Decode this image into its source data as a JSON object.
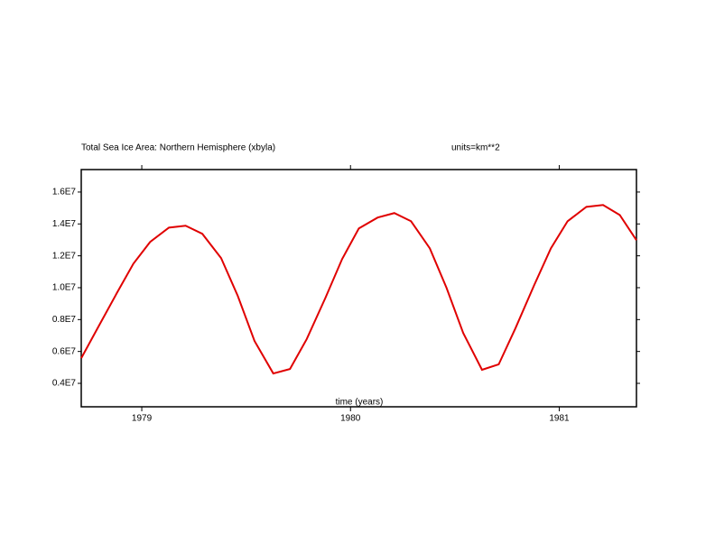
{
  "chart_data": {
    "type": "line",
    "title": "Total Sea Ice Area: Northern Hemisphere (xbyla)",
    "subtitle": "units=km**2",
    "x_label": "time (years)",
    "x": [
      1978.71,
      1978.79,
      1978.88,
      1978.96,
      1979.04,
      1979.13,
      1979.21,
      1979.29,
      1979.38,
      1979.46,
      1979.54,
      1979.63,
      1979.71,
      1979.79,
      1979.88,
      1979.96,
      1980.04,
      1980.13,
      1980.21,
      1980.29,
      1980.38,
      1980.46,
      1980.54,
      1980.63,
      1980.71,
      1980.79,
      1980.88,
      1980.96,
      1981.04,
      1981.13,
      1981.21,
      1981.29,
      1981.37
    ],
    "series": [
      {
        "name": "Total Sea Ice Area",
        "color": "#e00000",
        "values": [
          5580000,
          7500000,
          9650000,
          11510000,
          12870000,
          13770000,
          13890000,
          13380000,
          11860000,
          9480000,
          6660000,
          4620000,
          4900000,
          6770000,
          9370000,
          11800000,
          13720000,
          14400000,
          14680000,
          14170000,
          12470000,
          9990000,
          7160000,
          4850000,
          5190000,
          7450000,
          10160000,
          12470000,
          14170000,
          15070000,
          15190000,
          14560000,
          12980000
        ]
      }
    ],
    "xlim": [
      1978.71,
      1981.37
    ],
    "xticks": [
      1979,
      1980,
      1981
    ],
    "ylim": [
      2530000,
      17410000
    ],
    "yticks": [
      {
        "value": 4000000,
        "label": "0.4E7"
      },
      {
        "value": 6000000,
        "label": "0.6E7"
      },
      {
        "value": 8000000,
        "label": "0.8E7"
      },
      {
        "value": 10000000,
        "label": "1.0E7"
      },
      {
        "value": 12000000,
        "label": "1.2E7"
      },
      {
        "value": 14000000,
        "label": "1.4E7"
      },
      {
        "value": 16000000,
        "label": "1.6E7"
      }
    ],
    "grid": false
  }
}
